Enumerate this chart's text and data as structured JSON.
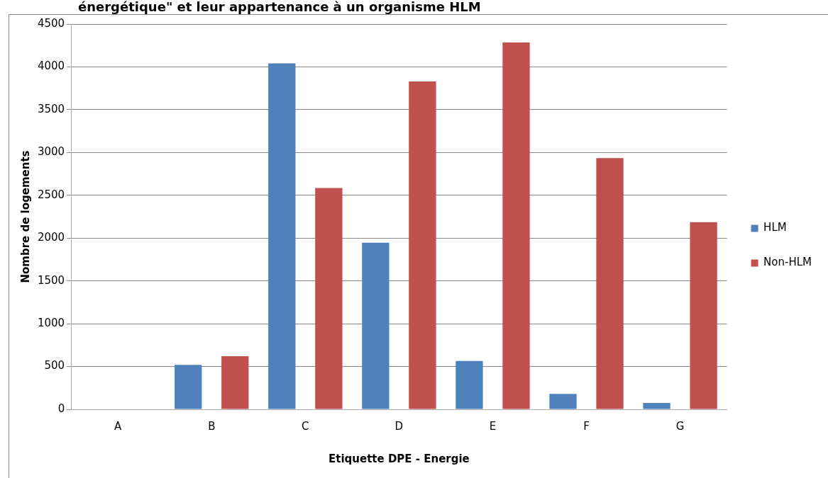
{
  "chart_data": {
    "type": "bar",
    "title": "énergétique\" et leur appartenance à un organisme HLM",
    "xlabel": "Etiquette DPE - Energie",
    "ylabel": "Nombre de logements",
    "categories": [
      "A",
      "B",
      "C",
      "D",
      "E",
      "F",
      "G"
    ],
    "series": [
      {
        "name": "HLM",
        "color": "#4f81bd",
        "values": [
          0,
          520,
          4040,
          1945,
          565,
          180,
          75
        ]
      },
      {
        "name": "Non-HLM",
        "color": "#c0504d",
        "values": [
          0,
          620,
          2585,
          3830,
          4285,
          2935,
          2185
        ]
      }
    ],
    "ylim": [
      0,
      4500
    ],
    "yticks": [
      0,
      500,
      1000,
      1500,
      2000,
      2500,
      3000,
      3500,
      4000,
      4500
    ],
    "grid": "y",
    "legend": "right"
  }
}
